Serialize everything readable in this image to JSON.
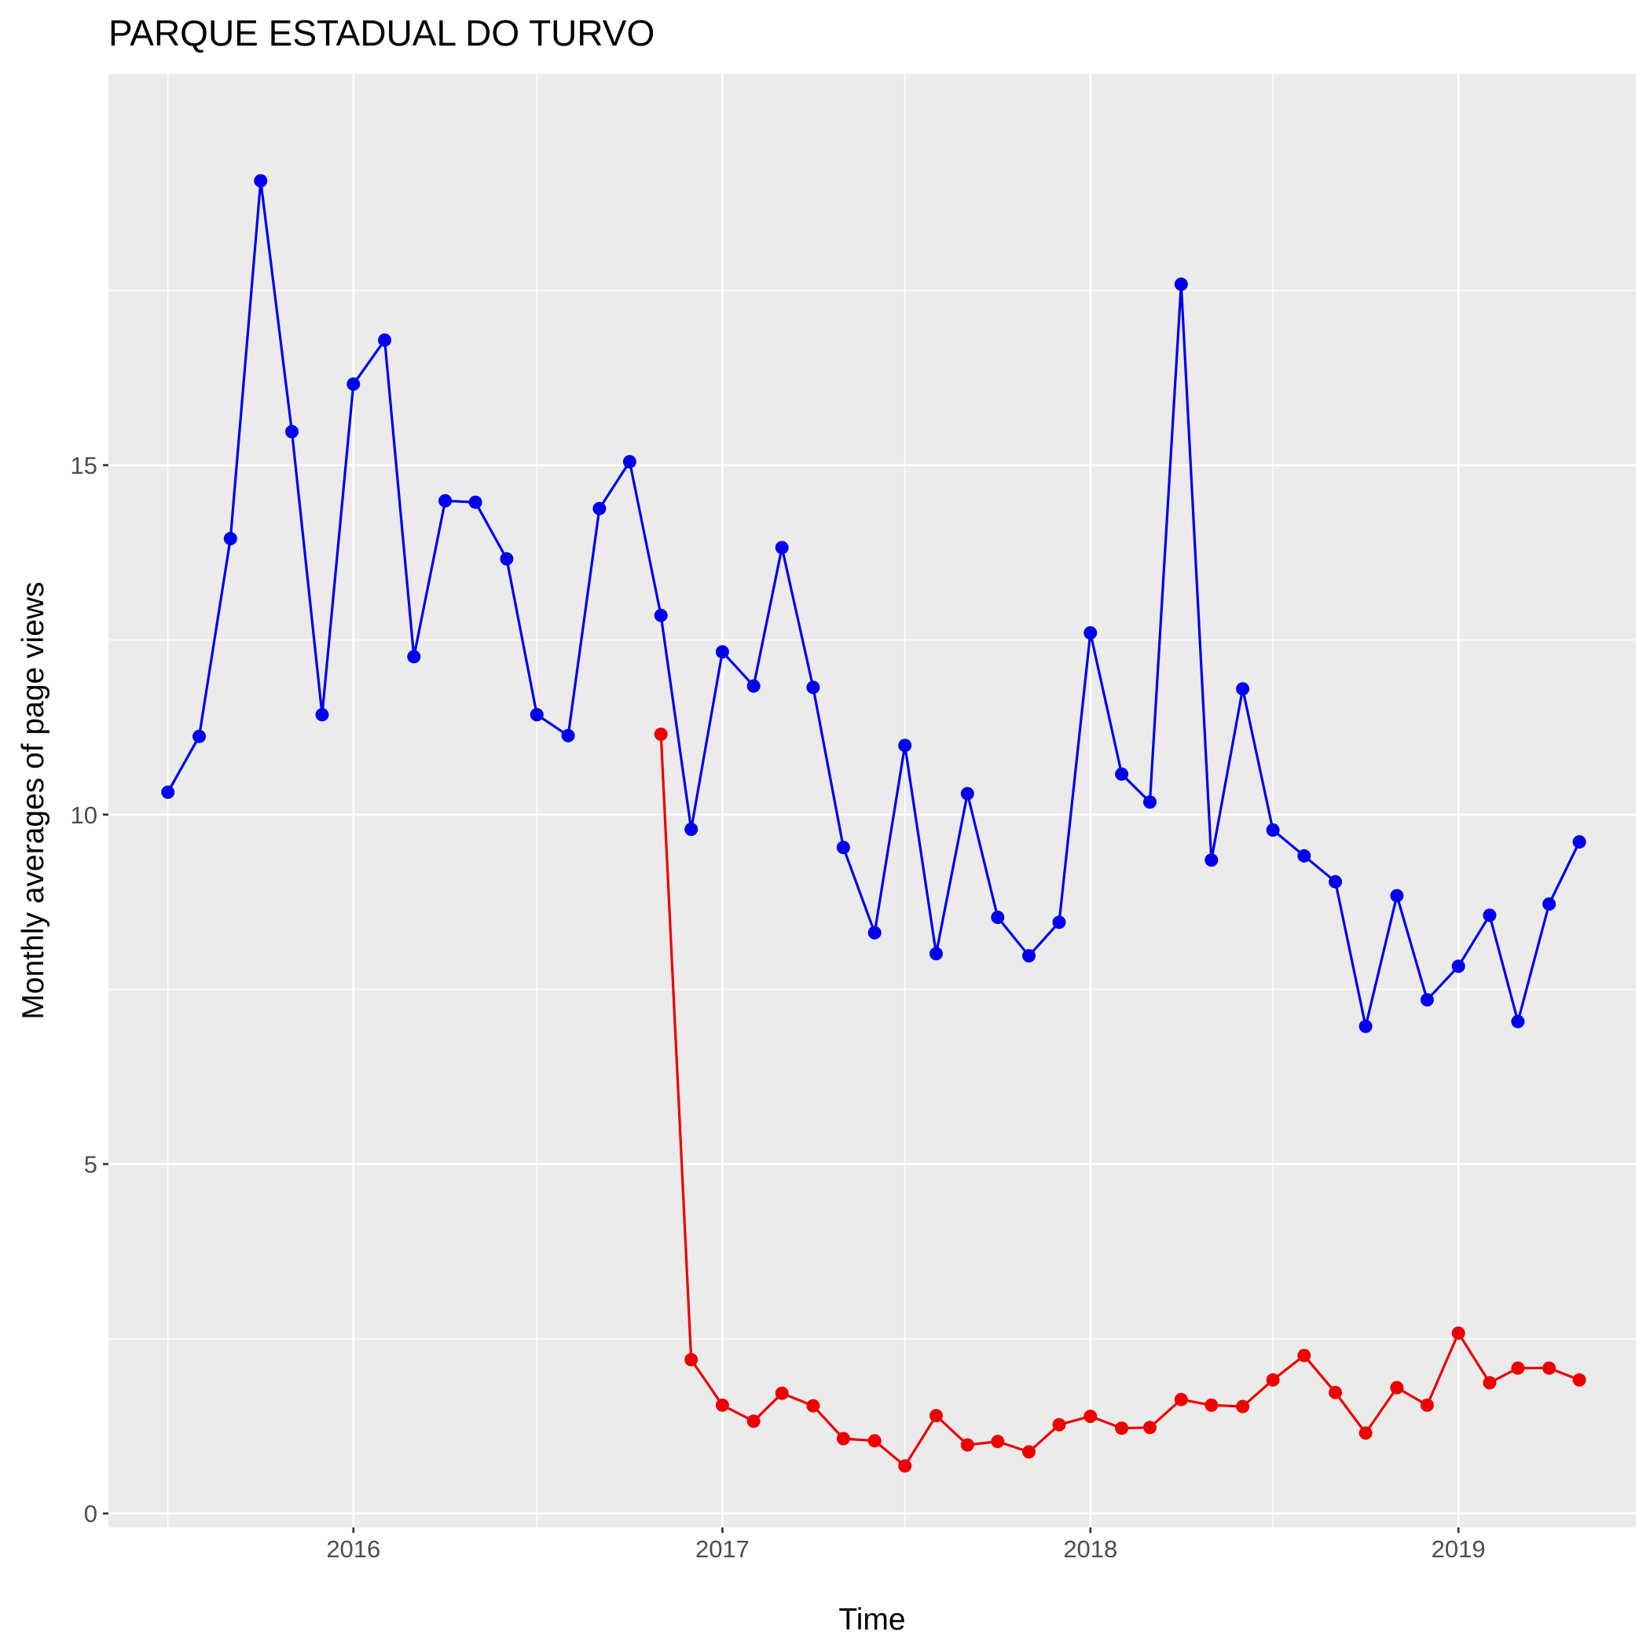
{
  "chart_data": {
    "type": "line",
    "title": "PARQUE ESTADUAL DO TURVO",
    "xlabel": "Time",
    "ylabel": "Monthly averages of page views",
    "x_ticks": [
      "2016",
      "2017",
      "2018",
      "2019"
    ],
    "y_ticks": [
      "0",
      "5",
      "10",
      "15"
    ],
    "xlim": [
      "2015-05-03",
      "2019-06-26"
    ],
    "ylim": [
      -0.2,
      20.6
    ],
    "grid": true,
    "legend": "none",
    "series": [
      {
        "color": "#0000ee",
        "points": [
          [
            "2015-07-01",
            10.32
          ],
          [
            "2015-08-01",
            11.12
          ],
          [
            "2015-09-01",
            13.95
          ],
          [
            "2015-10-01",
            19.07
          ],
          [
            "2015-11-01",
            15.48
          ],
          [
            "2015-12-01",
            11.43
          ],
          [
            "2016-01-01",
            16.16
          ],
          [
            "2016-02-01",
            16.79
          ],
          [
            "2016-03-01",
            12.26
          ],
          [
            "2016-04-01",
            14.49
          ],
          [
            "2016-05-01",
            14.47
          ],
          [
            "2016-06-01",
            13.66
          ],
          [
            "2016-07-01",
            11.43
          ],
          [
            "2016-08-01",
            11.13
          ],
          [
            "2016-09-01",
            14.38
          ],
          [
            "2016-10-01",
            15.05
          ],
          [
            "2016-11-01",
            12.85
          ],
          [
            "2016-12-01",
            9.79
          ],
          [
            "2017-01-01",
            12.33
          ],
          [
            "2017-02-01",
            11.84
          ],
          [
            "2017-03-01",
            13.82
          ],
          [
            "2017-04-01",
            11.82
          ],
          [
            "2017-05-01",
            9.53
          ],
          [
            "2017-06-01",
            8.31
          ],
          [
            "2017-07-01",
            10.99
          ],
          [
            "2017-08-01",
            8.01
          ],
          [
            "2017-09-01",
            10.3
          ],
          [
            "2017-10-01",
            8.53
          ],
          [
            "2017-11-01",
            7.98
          ],
          [
            "2017-12-01",
            8.46
          ],
          [
            "2018-01-01",
            12.6
          ],
          [
            "2018-02-01",
            10.58
          ],
          [
            "2018-03-01",
            10.18
          ],
          [
            "2018-04-01",
            17.59
          ],
          [
            "2018-05-01",
            9.35
          ],
          [
            "2018-06-01",
            11.8
          ],
          [
            "2018-07-01",
            9.78
          ],
          [
            "2018-08-01",
            9.41
          ],
          [
            "2018-09-01",
            9.04
          ],
          [
            "2018-10-01",
            6.97
          ],
          [
            "2018-11-01",
            8.84
          ],
          [
            "2018-12-01",
            7.35
          ],
          [
            "2019-01-01",
            7.83
          ],
          [
            "2019-02-01",
            8.56
          ],
          [
            "2019-03-01",
            7.04
          ],
          [
            "2019-04-01",
            8.72
          ],
          [
            "2019-05-01",
            9.61
          ]
        ]
      },
      {
        "color": "#ee0000",
        "points": [
          [
            "2016-11-01",
            11.15
          ],
          [
            "2016-12-01",
            2.2
          ],
          [
            "2017-01-01",
            1.55
          ],
          [
            "2017-02-01",
            1.32
          ],
          [
            "2017-03-01",
            1.72
          ],
          [
            "2017-04-01",
            1.54
          ],
          [
            "2017-05-01",
            1.07
          ],
          [
            "2017-06-01",
            1.04
          ],
          [
            "2017-07-01",
            0.68
          ],
          [
            "2017-08-01",
            1.4
          ],
          [
            "2017-09-01",
            0.98
          ],
          [
            "2017-10-01",
            1.03
          ],
          [
            "2017-11-01",
            0.88
          ],
          [
            "2017-12-01",
            1.27
          ],
          [
            "2018-01-01",
            1.39
          ],
          [
            "2018-02-01",
            1.22
          ],
          [
            "2018-03-01",
            1.23
          ],
          [
            "2018-04-01",
            1.63
          ],
          [
            "2018-05-01",
            1.55
          ],
          [
            "2018-06-01",
            1.53
          ],
          [
            "2018-07-01",
            1.91
          ],
          [
            "2018-08-01",
            2.26
          ],
          [
            "2018-09-01",
            1.73
          ],
          [
            "2018-10-01",
            1.15
          ],
          [
            "2018-11-01",
            1.8
          ],
          [
            "2018-12-01",
            1.55
          ],
          [
            "2019-01-01",
            2.58
          ],
          [
            "2019-02-01",
            1.87
          ],
          [
            "2019-03-01",
            2.08
          ],
          [
            "2019-04-01",
            2.08
          ],
          [
            "2019-05-01",
            1.91
          ]
        ]
      }
    ]
  }
}
